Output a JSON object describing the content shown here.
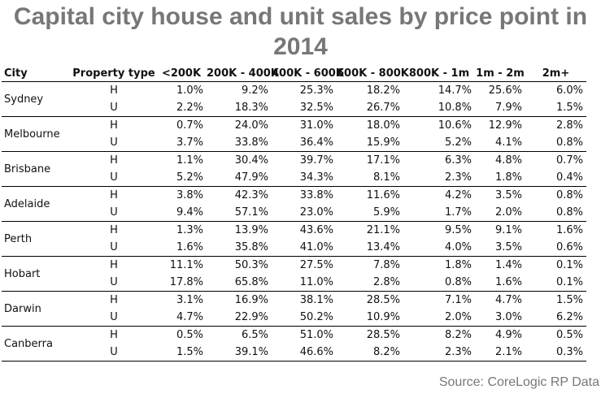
{
  "chart_data": {
    "type": "table",
    "title": "Capital city house and unit sales by price point in 2014",
    "columns": [
      "City",
      "Property type",
      "<200K",
      "200K - 400K",
      "400K - 600K",
      "600K - 800K",
      "800K - 1m",
      "1m - 2m",
      "2m+"
    ],
    "rows": [
      {
        "city": "Sydney",
        "data": [
          {
            "type": "H",
            "values": [
              "1.0%",
              "9.2%",
              "25.3%",
              "18.2%",
              "14.7%",
              "25.6%",
              "6.0%"
            ]
          },
          {
            "type": "U",
            "values": [
              "2.2%",
              "18.3%",
              "32.5%",
              "26.7%",
              "10.8%",
              "7.9%",
              "1.5%"
            ]
          }
        ]
      },
      {
        "city": "Melbourne",
        "data": [
          {
            "type": "H",
            "values": [
              "0.7%",
              "24.0%",
              "31.0%",
              "18.0%",
              "10.6%",
              "12.9%",
              "2.8%"
            ]
          },
          {
            "type": "U",
            "values": [
              "3.7%",
              "33.8%",
              "36.4%",
              "15.9%",
              "5.2%",
              "4.1%",
              "0.8%"
            ]
          }
        ]
      },
      {
        "city": "Brisbane",
        "data": [
          {
            "type": "H",
            "values": [
              "1.1%",
              "30.4%",
              "39.7%",
              "17.1%",
              "6.3%",
              "4.8%",
              "0.7%"
            ]
          },
          {
            "type": "U",
            "values": [
              "5.2%",
              "47.9%",
              "34.3%",
              "8.1%",
              "2.3%",
              "1.8%",
              "0.4%"
            ]
          }
        ]
      },
      {
        "city": "Adelaide",
        "data": [
          {
            "type": "H",
            "values": [
              "3.8%",
              "42.3%",
              "33.8%",
              "11.6%",
              "4.2%",
              "3.5%",
              "0.8%"
            ]
          },
          {
            "type": "U",
            "values": [
              "9.4%",
              "57.1%",
              "23.0%",
              "5.9%",
              "1.7%",
              "2.0%",
              "0.8%"
            ]
          }
        ]
      },
      {
        "city": "Perth",
        "data": [
          {
            "type": "H",
            "values": [
              "1.3%",
              "13.9%",
              "43.6%",
              "21.1%",
              "9.5%",
              "9.1%",
              "1.6%"
            ]
          },
          {
            "type": "U",
            "values": [
              "1.6%",
              "35.8%",
              "41.0%",
              "13.4%",
              "4.0%",
              "3.5%",
              "0.6%"
            ]
          }
        ]
      },
      {
        "city": "Hobart",
        "data": [
          {
            "type": "H",
            "values": [
              "11.1%",
              "50.3%",
              "27.5%",
              "7.8%",
              "1.8%",
              "1.4%",
              "0.1%"
            ]
          },
          {
            "type": "U",
            "values": [
              "17.8%",
              "65.8%",
              "11.0%",
              "2.8%",
              "0.8%",
              "1.6%",
              "0.1%"
            ]
          }
        ]
      },
      {
        "city": "Darwin",
        "data": [
          {
            "type": "H",
            "values": [
              "3.1%",
              "16.9%",
              "38.1%",
              "28.5%",
              "7.1%",
              "4.7%",
              "1.5%"
            ]
          },
          {
            "type": "U",
            "values": [
              "4.7%",
              "22.9%",
              "50.2%",
              "10.9%",
              "2.0%",
              "3.0%",
              "6.2%"
            ]
          }
        ]
      },
      {
        "city": "Canberra",
        "data": [
          {
            "type": "H",
            "values": [
              "0.5%",
              "6.5%",
              "51.0%",
              "28.5%",
              "8.2%",
              "4.9%",
              "0.5%"
            ]
          },
          {
            "type": "U",
            "values": [
              "1.5%",
              "39.1%",
              "46.6%",
              "8.2%",
              "2.3%",
              "2.1%",
              "0.3%"
            ]
          }
        ]
      }
    ],
    "source": "Source: CoreLogic RP Data",
    "grid": true
  },
  "colors": {
    "title": "#777777",
    "source": "#777777",
    "text": "#111111",
    "rule": "#000000"
  }
}
